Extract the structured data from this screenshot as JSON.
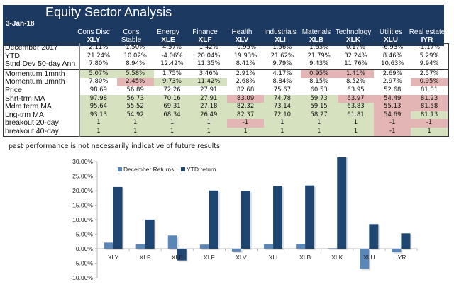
{
  "header": {
    "title": "Equity Sector  Analysis",
    "date": "3-Jan-18"
  },
  "sectors": [
    {
      "name": "Cons Disc",
      "ticker": "XLY"
    },
    {
      "name": "Cons Stable",
      "ticker": "XLP"
    },
    {
      "name": "Energy",
      "ticker": "XLE"
    },
    {
      "name": "Finance",
      "ticker": "XLF"
    },
    {
      "name": "Health",
      "ticker": "XLV"
    },
    {
      "name": "Industrials",
      "ticker": "XLI"
    },
    {
      "name": "Materials",
      "ticker": "XLB"
    },
    {
      "name": "Technology",
      "ticker": "XLK"
    },
    {
      "name": "Utilities",
      "ticker": "XLU"
    },
    {
      "name": "Real estate",
      "ticker": "IYR"
    }
  ],
  "rows": [
    {
      "label": "December 2017",
      "values": [
        "2.11%",
        "1.50%",
        "4.57%",
        "1.42%",
        "-0.95%",
        "1.56%",
        "1.63%",
        "0.17%",
        "-6.93%",
        "-1.17%"
      ],
      "colors": [
        "",
        "",
        "",
        "",
        "",
        "",
        "",
        "",
        "",
        ""
      ]
    },
    {
      "label": "YTD",
      "values": [
        "21.24%",
        "10.02%",
        "-4.06%",
        "20.04%",
        "19.93%",
        "21.62%",
        "21.79%",
        "32.24%",
        "8.46%",
        "5.29%"
      ],
      "colors": [
        "",
        "",
        "",
        "",
        "",
        "",
        "",
        "",
        "",
        ""
      ]
    },
    {
      "label": "Stnd Dev 50-day Ann",
      "values": [
        "7.80%",
        "8.94%",
        "12.42%",
        "11.35%",
        "8.41%",
        "9.79%",
        "9.43%",
        "11.76%",
        "10.63%",
        "9.94%"
      ],
      "colors": [
        "",
        "",
        "",
        "",
        "",
        "",
        "",
        "",
        "",
        ""
      ]
    },
    {
      "label": "Momentum 1mnth",
      "values": [
        "5.07%",
        "5.58%",
        "1.75%",
        "3.46%",
        "2.91%",
        "4.17%",
        "0.95%",
        "1.41%",
        "2.69%",
        "2.57%"
      ],
      "colors": [
        "green",
        "green",
        "",
        "",
        "",
        "",
        "red",
        "red",
        "",
        ""
      ]
    },
    {
      "label": "Momentum 3mnth",
      "values": [
        "7.80%",
        "2.45%",
        "9.73%",
        "11.42%",
        "2.68%",
        "8.84%",
        "8.15%",
        "8.52%",
        "2.97%",
        "0.95%"
      ],
      "colors": [
        "",
        "red",
        "green",
        "green",
        "",
        "",
        "",
        "",
        "",
        "red"
      ]
    },
    {
      "label": "Price",
      "values": [
        "98.69",
        "56.89",
        "72.26",
        "27.91",
        "82.68",
        "75.67",
        "60.53",
        "63.95",
        "52.68",
        "81.01"
      ],
      "colors": [
        "",
        "",
        "",
        "",
        "",
        "",
        "",
        "",
        "",
        ""
      ]
    },
    {
      "label": "Shrt-trm MA",
      "values": [
        "97.98",
        "56.73",
        "70.16",
        "27.91",
        "83.09",
        "74.78",
        "59.73",
        "63.97",
        "54.49",
        "81.23"
      ],
      "colors": [
        "green",
        "green",
        "green",
        "green",
        "red",
        "green",
        "green",
        "red",
        "red",
        "red"
      ]
    },
    {
      "label": "Mdm term MA",
      "values": [
        "95.64",
        "55.52",
        "69.31",
        "27.18",
        "82.32",
        "73.14",
        "59.15",
        "63.83",
        "55.13",
        "81.58"
      ],
      "colors": [
        "green",
        "green",
        "green",
        "green",
        "green",
        "green",
        "green",
        "green",
        "red",
        "red"
      ]
    },
    {
      "label": "Lng-trm MA",
      "values": [
        "93.13",
        "54.92",
        "68.34",
        "26.49",
        "82.37",
        "72.10",
        "58.27",
        "61.81",
        "54.69",
        "81.13"
      ],
      "colors": [
        "green",
        "green",
        "green",
        "green",
        "green",
        "green",
        "green",
        "green",
        "red",
        "green"
      ]
    },
    {
      "label": "breakout 20-day",
      "values": [
        "1",
        "1",
        "1",
        "1",
        "-1",
        "1",
        "1",
        "1",
        "-1",
        "-1"
      ],
      "colors": [
        "green",
        "green",
        "green",
        "green",
        "red",
        "green",
        "green",
        "green",
        "red",
        "red"
      ]
    },
    {
      "label": "breakout 40-day",
      "values": [
        "1",
        "1",
        "1",
        "1",
        "1",
        "1",
        "1",
        "1",
        "-1",
        "1"
      ],
      "colors": [
        "green",
        "green",
        "green",
        "green",
        "green",
        "green",
        "green",
        "green",
        "red",
        "green"
      ]
    }
  ],
  "note": "past performance is not necessarily indicative of future results",
  "colors": {
    "header_bg": "#1c3a61",
    "positive_cell": "#d6e2bf",
    "negative_cell": "#e3b5b5",
    "december_series": "#5b87b8",
    "ytd_series": "#1e4670"
  },
  "chart_data": {
    "type": "bar",
    "title": "",
    "xlabel": "",
    "ylabel": "",
    "categories": [
      "XLY",
      "XLP",
      "XLE",
      "XLF",
      "XLV",
      "XLI",
      "XLB",
      "XLK",
      "XLU",
      "IYR"
    ],
    "series": [
      {
        "name": "December Returns",
        "values": [
          2.11,
          1.5,
          4.57,
          1.42,
          -0.95,
          1.56,
          1.63,
          0.17,
          -6.93,
          -1.17
        ]
      },
      {
        "name": "YTD return",
        "values": [
          21.24,
          10.02,
          -4.06,
          20.04,
          19.93,
          21.62,
          21.79,
          32.24,
          8.46,
          5.29
        ]
      }
    ],
    "ylim": [
      -10,
      30
    ],
    "yticks": [
      "-10.00%",
      "-5.00%",
      "0.00%",
      "5.00%",
      "10.00%",
      "15.00%",
      "20.00%",
      "25.00%",
      "30.00%"
    ],
    "ytick_values": [
      -10,
      -5,
      0,
      5,
      10,
      15,
      20,
      25,
      30
    ],
    "legend": "top-left",
    "grid": false
  }
}
